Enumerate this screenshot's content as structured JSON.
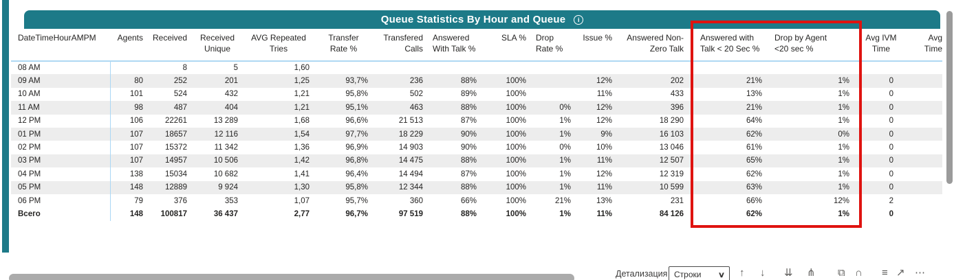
{
  "title": "Queue Statistics By Hour and Queue",
  "info_icon_label": "i",
  "colors": {
    "accent_teal": "#1d7a88",
    "highlight_red": "#df1310",
    "alt_row_gray": "#ededed",
    "separator_blue": "#a9d7f5"
  },
  "table": {
    "columns": [
      {
        "id": "datetimehourampm",
        "line1": "DateTimeHourAMPM",
        "line2": ""
      },
      {
        "id": "agents",
        "line1": "Agents",
        "line2": ""
      },
      {
        "id": "received",
        "line1": "Received",
        "line2": ""
      },
      {
        "id": "received-unique",
        "line1": "Received",
        "line2": "Unique"
      },
      {
        "id": "avg-repeated-tries",
        "line1": "AVG Repeated",
        "line2": "Tries"
      },
      {
        "id": "transfer-rate",
        "line1": "Transfer",
        "line2": "Rate %"
      },
      {
        "id": "transfered-calls",
        "line1": "Transfered",
        "line2": "Calls"
      },
      {
        "id": "answered-with-talk",
        "line1": "Answered",
        "line2": "With Talk %"
      },
      {
        "id": "sla",
        "line1": "SLA %",
        "line2": ""
      },
      {
        "id": "drop-rate",
        "line1": "Drop",
        "line2": "Rate %"
      },
      {
        "id": "issue",
        "line1": "Issue %",
        "line2": ""
      },
      {
        "id": "answered-non-zero-talk",
        "line1": "Answered Non-",
        "line2": "Zero Talk"
      },
      {
        "id": "answered-talk-lt-20sec",
        "line1": "Answered with",
        "line2": "Talk < 20 Sec %"
      },
      {
        "id": "drop-by-agent-lt-20sec",
        "line1": "Drop by Agent",
        "line2": "<20 sec %"
      },
      {
        "id": "avg-ivm-time",
        "line1": "Avg IVM",
        "line2": "Time"
      },
      {
        "id": "avg-time-clipped",
        "line1": "Avg",
        "line2": "Time"
      }
    ],
    "rows": [
      {
        "total": false,
        "cells": [
          "08 AM",
          "",
          "8",
          "5",
          "1,60",
          "",
          "",
          "",
          "",
          "",
          "",
          "",
          "",
          "",
          "",
          ""
        ]
      },
      {
        "total": false,
        "cells": [
          "09 AM",
          "80",
          "252",
          "201",
          "1,25",
          "93,7%",
          "236",
          "88%",
          "100%",
          "",
          "12%",
          "202",
          "21%",
          "1%",
          "0",
          ""
        ]
      },
      {
        "total": false,
        "cells": [
          "10 AM",
          "101",
          "524",
          "432",
          "1,21",
          "95,8%",
          "502",
          "89%",
          "100%",
          "",
          "11%",
          "433",
          "13%",
          "1%",
          "0",
          ""
        ]
      },
      {
        "total": false,
        "cells": [
          "11 AM",
          "98",
          "487",
          "404",
          "1,21",
          "95,1%",
          "463",
          "88%",
          "100%",
          "0%",
          "12%",
          "396",
          "21%",
          "1%",
          "0",
          ""
        ]
      },
      {
        "total": false,
        "cells": [
          "12 PM",
          "106",
          "22261",
          "13 289",
          "1,68",
          "96,6%",
          "21 513",
          "87%",
          "100%",
          "1%",
          "12%",
          "18 290",
          "64%",
          "1%",
          "0",
          ""
        ]
      },
      {
        "total": false,
        "cells": [
          "01 PM",
          "107",
          "18657",
          "12 116",
          "1,54",
          "97,7%",
          "18 229",
          "90%",
          "100%",
          "1%",
          "9%",
          "16 103",
          "62%",
          "0%",
          "0",
          ""
        ]
      },
      {
        "total": false,
        "cells": [
          "02 PM",
          "107",
          "15372",
          "11 342",
          "1,36",
          "96,9%",
          "14 903",
          "90%",
          "100%",
          "0%",
          "10%",
          "13 046",
          "61%",
          "1%",
          "0",
          ""
        ]
      },
      {
        "total": false,
        "cells": [
          "03 PM",
          "107",
          "14957",
          "10 506",
          "1,42",
          "96,8%",
          "14 475",
          "88%",
          "100%",
          "1%",
          "11%",
          "12 507",
          "65%",
          "1%",
          "0",
          ""
        ]
      },
      {
        "total": false,
        "cells": [
          "04 PM",
          "138",
          "15034",
          "10 682",
          "1,41",
          "96,4%",
          "14 494",
          "87%",
          "100%",
          "1%",
          "12%",
          "12 319",
          "62%",
          "1%",
          "0",
          ""
        ]
      },
      {
        "total": false,
        "cells": [
          "05 PM",
          "148",
          "12889",
          "9 924",
          "1,30",
          "95,8%",
          "12 344",
          "88%",
          "100%",
          "1%",
          "11%",
          "10 599",
          "63%",
          "1%",
          "0",
          ""
        ]
      },
      {
        "total": false,
        "cells": [
          "06 PM",
          "79",
          "376",
          "353",
          "1,07",
          "95,7%",
          "360",
          "66%",
          "100%",
          "21%",
          "13%",
          "231",
          "66%",
          "12%",
          "2",
          ""
        ]
      },
      {
        "total": true,
        "cells": [
          "Всего",
          "148",
          "100817",
          "36 437",
          "2,77",
          "96,7%",
          "97 519",
          "88%",
          "100%",
          "1%",
          "11%",
          "84 126",
          "62%",
          "1%",
          "0",
          ""
        ]
      }
    ]
  },
  "footer": {
    "drill_label": "Детализация",
    "drill_mode_selected": "Строки",
    "chevron": "∨",
    "icons": [
      {
        "name": "drill-up-icon",
        "glyph": "↑"
      },
      {
        "name": "drill-down-icon",
        "glyph": "↓"
      },
      {
        "name": "go-to-next-level-icon",
        "glyph": "⇊"
      },
      {
        "name": "expand-all-icon",
        "glyph": "⋔"
      },
      {
        "name": "copy-icon",
        "glyph": "⧉"
      },
      {
        "name": "search-icon",
        "glyph": "∩"
      },
      {
        "name": "filter-lines-icon",
        "glyph": "≡"
      },
      {
        "name": "open-window-icon",
        "glyph": "↗"
      },
      {
        "name": "more-options-icon",
        "glyph": "⋯"
      }
    ]
  }
}
